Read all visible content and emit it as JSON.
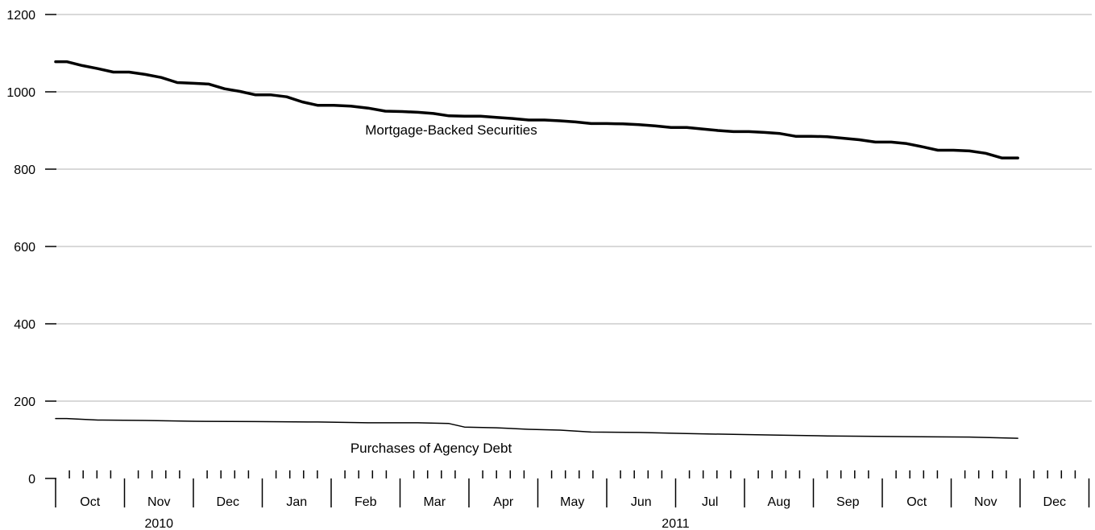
{
  "chart_data": {
    "type": "line",
    "ylim": [
      0,
      1200
    ],
    "yticks": [
      "0",
      "200",
      "400",
      "600",
      "800",
      "1000",
      "1200"
    ],
    "grid": true,
    "months": [
      "Oct",
      "Nov",
      "Dec",
      "Jan",
      "Feb",
      "Mar",
      "Apr",
      "May",
      "Jun",
      "Jul",
      "Aug",
      "Sep",
      "Oct",
      "Nov",
      "Dec"
    ],
    "years": [
      {
        "label": "2010",
        "start_month": 0,
        "end_month": 3
      },
      {
        "label": "2011",
        "start_month": 3,
        "end_month": 15
      }
    ],
    "series": [
      {
        "name": "Mortgage-Backed Securities",
        "x": [
          "2010-10-01",
          "2010-10-06",
          "2010-10-13",
          "2010-10-20",
          "2010-10-27",
          "2010-11-03",
          "2010-11-10",
          "2010-11-17",
          "2010-11-24",
          "2010-12-01",
          "2010-12-08",
          "2010-12-15",
          "2010-12-22",
          "2010-12-29",
          "2011-01-05",
          "2011-01-12",
          "2011-01-19",
          "2011-01-26",
          "2011-02-02",
          "2011-02-09",
          "2011-02-16",
          "2011-02-23",
          "2011-03-02",
          "2011-03-09",
          "2011-03-16",
          "2011-03-23",
          "2011-03-30",
          "2011-04-06",
          "2011-04-13",
          "2011-04-20",
          "2011-04-27",
          "2011-05-04",
          "2011-05-11",
          "2011-05-18",
          "2011-05-25",
          "2011-06-01",
          "2011-06-08",
          "2011-06-15",
          "2011-06-22",
          "2011-06-29",
          "2011-07-06",
          "2011-07-13",
          "2011-07-20",
          "2011-07-27",
          "2011-08-03",
          "2011-08-10",
          "2011-08-17",
          "2011-08-24",
          "2011-08-31",
          "2011-09-07",
          "2011-09-14",
          "2011-09-21",
          "2011-09-28",
          "2011-10-05",
          "2011-10-12",
          "2011-10-19",
          "2011-10-26",
          "2011-11-02",
          "2011-11-09",
          "2011-11-16",
          "2011-11-23",
          "2011-11-30"
        ],
        "values": [
          1078,
          1078,
          1068,
          1060,
          1051,
          1051,
          1045,
          1037,
          1024,
          1022,
          1020,
          1008,
          1001,
          992,
          992,
          987,
          974,
          965,
          965,
          963,
          958,
          950,
          949,
          947,
          944,
          938,
          937,
          937,
          934,
          931,
          927,
          927,
          925,
          922,
          918,
          918,
          917,
          915,
          912,
          908,
          908,
          904,
          900,
          897,
          897,
          895,
          892,
          885,
          885,
          884,
          880,
          876,
          870,
          870,
          866,
          858,
          849,
          849,
          847,
          841,
          829,
          829
        ],
        "stroke_width": 3.5
      },
      {
        "name": "Purchases of Agency Debt",
        "x": [
          "2010-10-01",
          "2010-10-06",
          "2010-10-20",
          "2010-11-10",
          "2010-12-01",
          "2010-12-29",
          "2011-01-26",
          "2011-02-16",
          "2011-03-09",
          "2011-03-23",
          "2011-03-30",
          "2011-04-13",
          "2011-04-27",
          "2011-05-11",
          "2011-05-25",
          "2011-06-15",
          "2011-07-06",
          "2011-07-27",
          "2011-08-17",
          "2011-09-07",
          "2011-09-28",
          "2011-10-19",
          "2011-11-09",
          "2011-11-30"
        ],
        "values": [
          155,
          155,
          151,
          150,
          148,
          147,
          146,
          144,
          144,
          142,
          133,
          131,
          127,
          125,
          120,
          119,
          116,
          114,
          112,
          110,
          109,
          108,
          107,
          104
        ],
        "stroke_width": 1.5
      }
    ]
  }
}
